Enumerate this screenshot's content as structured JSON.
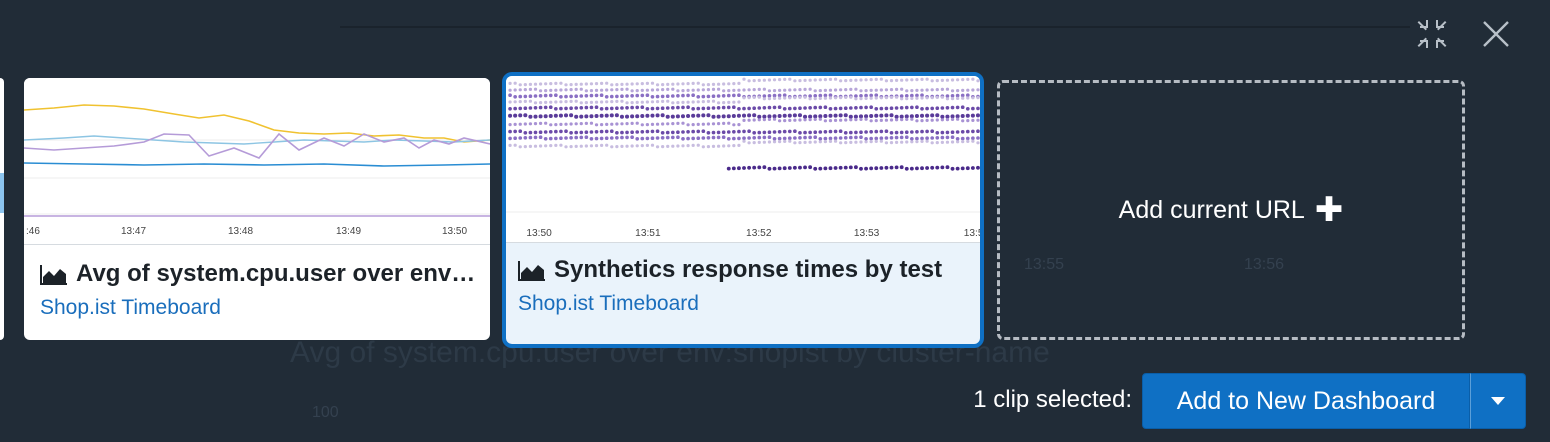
{
  "backdrop": {
    "ghost_title": "Avg of system.cpu.user over env:shopist by cluster-name",
    "ghost_tick_1": "13:55",
    "ghost_tick_2": "13:56",
    "ghost_value": "100"
  },
  "window_controls": {
    "collapse_icon": "collapse-arrows-icon",
    "close_icon": "close-icon"
  },
  "clips": [
    {
      "title": "Avg of system.cpu.user over env:shopist by cluster-name",
      "subtitle": "Shop.ist Timeboard",
      "icon": "area-chart-icon",
      "selected": false,
      "ticks": [
        ":46",
        "13:47",
        "13:48",
        "13:49",
        "13:50"
      ]
    },
    {
      "title": "Synthetics response times by test",
      "subtitle": "Shop.ist Timeboard",
      "icon": "area-chart-icon",
      "selected": true,
      "ticks": [
        "13:50",
        "13:51",
        "13:52",
        "13:53",
        "13:5"
      ]
    }
  ],
  "add_url": {
    "label": "Add current URL",
    "plus": "✚"
  },
  "footer": {
    "selection_label": "1 clip selected:",
    "primary_button": "Add to New Dashboard",
    "caret_icon": "caret-down-icon",
    "accent": "#0f70c4"
  }
}
